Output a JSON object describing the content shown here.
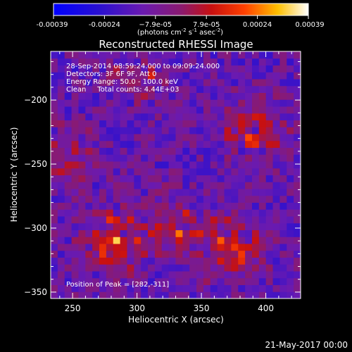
{
  "colorbar": {
    "ticks": [
      "-0.00039",
      "-0.00024",
      "−7.9e-05",
      "7.9e-05",
      "0.00024",
      "0.00039"
    ],
    "units_main": "(photons cm",
    "units_exp1": "-2",
    "units_mid": " s",
    "units_exp2": "-1",
    "units_mid2": " asec",
    "units_exp3": "-2",
    "units_end": ")"
  },
  "chart_data": {
    "type": "heatmap",
    "title": "Reconstructed RHESSI Image",
    "xlabel": "Heliocentric X (arcsec)",
    "ylabel": "Heliocentric Y (arcsec)",
    "xlim": [
      233,
      427
    ],
    "ylim": [
      -355,
      -162
    ],
    "x_ticks": [
      250,
      300,
      350,
      400
    ],
    "y_ticks": [
      -200,
      -250,
      -300,
      -350
    ],
    "y_tick_labels": [
      "−200",
      "−250",
      "−300",
      "−350"
    ],
    "value_range": [
      -0.00039,
      0.00039
    ],
    "colormap": "blue-purple-red-yellow-white",
    "peak_position": [
      282,
      -311
    ],
    "bright_regions": [
      {
        "x": 390,
        "y": -225,
        "level": 0.00033
      },
      {
        "x": 375,
        "y": -315,
        "level": 0.00036
      },
      {
        "x": 330,
        "y": -300,
        "level": 0.0003
      },
      {
        "x": 282,
        "y": -311,
        "level": 0.00039
      },
      {
        "x": 245,
        "y": -245,
        "level": 0.00022
      },
      {
        "x": 300,
        "y": -180,
        "level": 0.0002
      }
    ],
    "annotations": [
      "28-Sep-2014 08:59:24.000 to 09:09:24.000",
      "Detectors: 3F 6F 9F, Att 0",
      "Energy Range: 50.0 - 100.0 keV",
      "Clean     Total counts: 4.44E+03",
      "Position of Peak = [282,-311]"
    ]
  },
  "footer_date": "21-May-2017 00:00"
}
